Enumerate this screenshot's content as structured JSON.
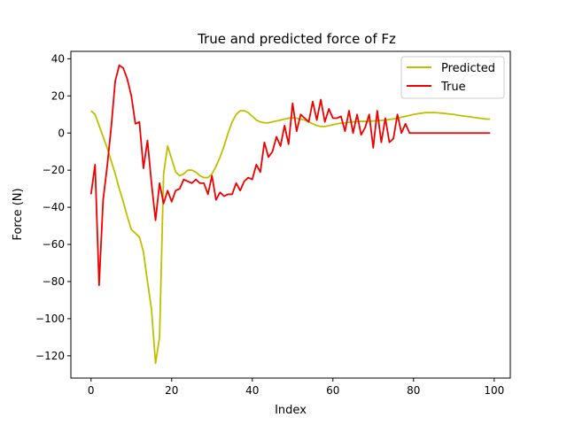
{
  "chart_data": {
    "type": "line",
    "title": "True and predicted force of Fz",
    "xlabel": "Index",
    "ylabel": "Force (N)",
    "xlim": [
      -5,
      104
    ],
    "ylim": [
      -132,
      44
    ],
    "xticks": [
      0,
      20,
      40,
      60,
      80,
      100
    ],
    "yticks": [
      -120,
      -100,
      -80,
      -60,
      -40,
      -20,
      0,
      20,
      40
    ],
    "grid": false,
    "legend": "upper-right",
    "series": [
      {
        "name": "Predicted",
        "color": "#bfbf00",
        "y": [
          12,
          10,
          4,
          -2,
          -8,
          -15,
          -22,
          -30,
          -37,
          -45,
          -52,
          -54,
          -56,
          -64,
          -80,
          -95,
          -124,
          -110,
          -22,
          -7,
          -14,
          -21,
          -23,
          -22,
          -20,
          -20,
          -21,
          -23,
          -24,
          -24,
          -22,
          -18,
          -13,
          -7,
          0,
          6,
          10,
          12,
          12,
          11,
          9,
          7,
          6,
          5.5,
          5.5,
          6,
          6.5,
          7,
          7.5,
          8,
          8.2,
          8,
          7.5,
          7,
          6,
          5,
          4,
          3.5,
          3.5,
          4,
          4.5,
          5,
          5.3,
          5.5,
          5.8,
          6,
          6.2,
          6.3,
          6.3,
          6.4,
          6.5,
          6.6,
          6.8,
          7,
          7.3,
          7.6,
          8,
          8.5,
          9,
          9.5,
          10,
          10.4,
          10.7,
          11,
          11,
          11,
          10.9,
          10.7,
          10.5,
          10.2,
          10,
          9.6,
          9.3,
          9,
          8.7,
          8.4,
          8.1,
          7.8,
          7.5,
          7.5
        ]
      },
      {
        "name": "True",
        "color": "#ee0000",
        "y": [
          -33,
          -17,
          -82,
          -36,
          -18,
          3,
          28,
          36.5,
          35,
          29,
          20,
          5,
          6,
          -19,
          -4,
          -27,
          -47,
          -27,
          -38,
          -31,
          -37,
          -31,
          -30,
          -25,
          -26,
          -27,
          -25,
          -27,
          -27,
          -33,
          -23,
          -36,
          -32,
          -34,
          -33,
          -33,
          -27,
          -31,
          -26,
          -24,
          -25,
          -17,
          -21,
          -5,
          -13,
          -10,
          -2,
          -7,
          4,
          -6,
          16,
          1,
          10,
          8,
          6,
          17,
          7,
          18,
          6,
          13,
          8,
          8,
          9,
          1,
          12,
          0,
          10,
          -1,
          3,
          10,
          -8,
          12,
          -5,
          8,
          -5,
          -3,
          10,
          0,
          5,
          0,
          0,
          0,
          0,
          0,
          0,
          0,
          0,
          0,
          0,
          0,
          0,
          0,
          0,
          0,
          0,
          0,
          0,
          0,
          0,
          0
        ]
      }
    ]
  }
}
